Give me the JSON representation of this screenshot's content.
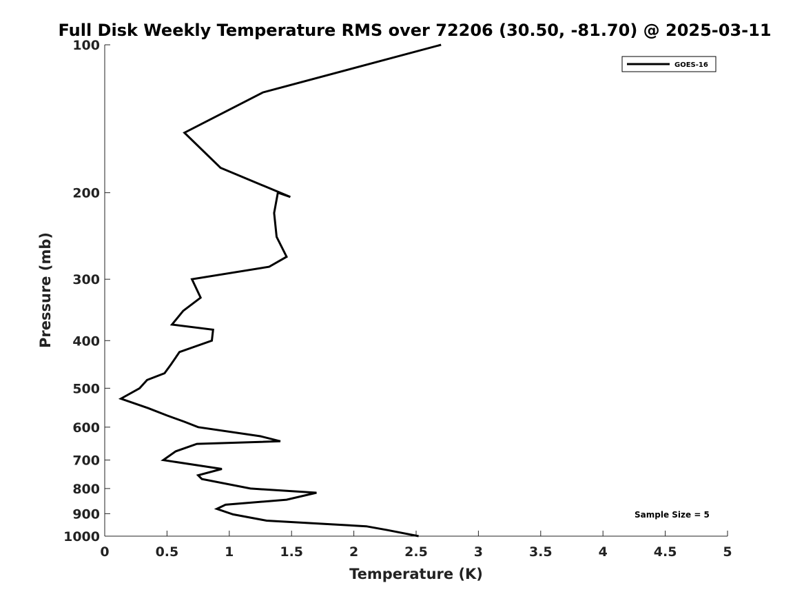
{
  "chart_data": {
    "type": "line",
    "title": "Full Disk Weekly Temperature RMS over 72206 (30.50, -81.70) @ 2025-03-11",
    "xlabel": "Temperature (K)",
    "ylabel": "Pressure (mb)",
    "xlim": [
      0,
      5
    ],
    "ylim": [
      100,
      1000
    ],
    "y_scale": "log",
    "y_reversed": true,
    "x_ticks": [
      0,
      0.5,
      1,
      1.5,
      2,
      2.5,
      3,
      3.5,
      4,
      4.5,
      5
    ],
    "x_tick_labels": [
      "0",
      "0.5",
      "1",
      "1.5",
      "2",
      "2.5",
      "3",
      "3.5",
      "4",
      "4.5",
      "5"
    ],
    "y_ticks": [
      100,
      200,
      300,
      400,
      500,
      600,
      700,
      800,
      900,
      1000
    ],
    "y_tick_labels": [
      "100",
      "200",
      "300",
      "400",
      "500",
      "600",
      "700",
      "800",
      "900",
      "1000"
    ],
    "grid": false,
    "legend_position": "top-right",
    "annotation": "Sample Size = 5",
    "series": [
      {
        "name": "GOES-16",
        "color": "#000000",
        "x": [
          2.7,
          1.27,
          0.64,
          0.93,
          1.49,
          1.39,
          1.36,
          1.38,
          1.46,
          1.32,
          0.7,
          0.77,
          0.63,
          0.54,
          0.87,
          0.86,
          0.6,
          0.53,
          0.48,
          0.34,
          0.28,
          0.13,
          0.35,
          0.5,
          0.64,
          0.75,
          1.25,
          1.41,
          0.74,
          0.57,
          0.47,
          0.94,
          0.75,
          0.78,
          1.17,
          1.7,
          1.46,
          0.97,
          0.9,
          1.03,
          1.3,
          2.1,
          2.27,
          2.52
        ],
        "y": [
          100,
          125,
          151,
          178,
          204,
          200,
          220,
          246,
          270,
          283,
          300,
          327,
          348,
          371,
          380,
          400,
          422,
          448,
          466,
          481,
          500,
          525,
          549,
          568,
          585,
          600,
          626,
          641,
          649,
          672,
          700,
          730,
          752,
          765,
          800,
          816,
          843,
          863,
          880,
          903,
          930,
          955,
          972,
          1000
        ]
      }
    ]
  }
}
